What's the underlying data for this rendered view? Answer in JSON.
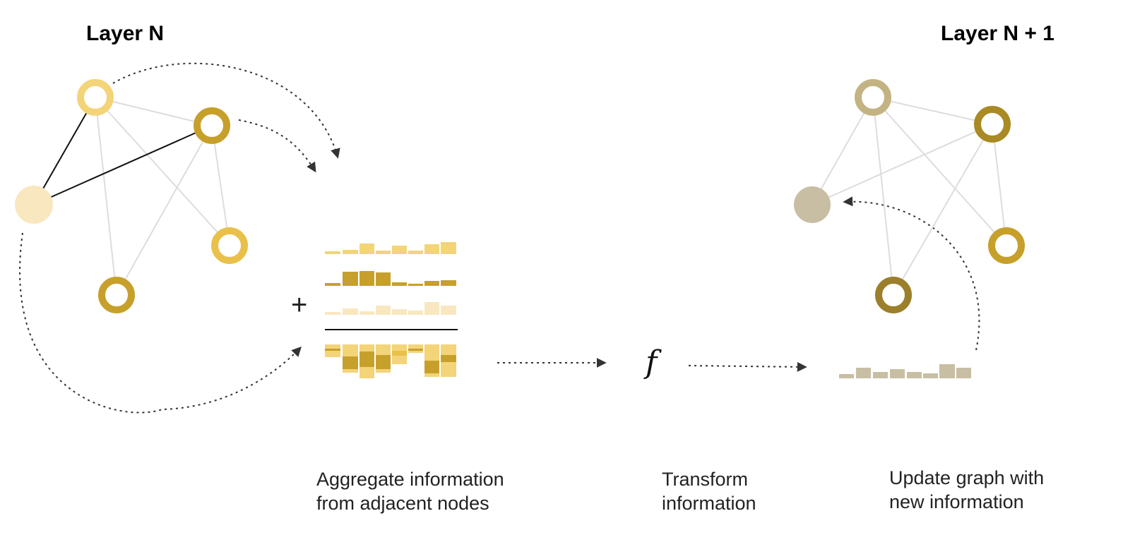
{
  "titles": {
    "left": "Layer N",
    "right": "Layer N + 1"
  },
  "captions": {
    "aggregate": [
      "Aggregate information",
      "from adjacent nodes"
    ],
    "transform": [
      "Transform",
      "information"
    ],
    "update": [
      "Update graph with",
      "new information"
    ]
  },
  "symbols": {
    "plus": "+",
    "function": "f"
  },
  "colors": {
    "edge_light": "#dddddd",
    "edge_dark": "#111111",
    "arrow": "#333333",
    "result_gray": "#c8bea3",
    "node_pale": "#f9e7bf",
    "node_light_gold": "#f3d479",
    "node_gold": "#e9c04a",
    "node_dark_gold": "#c7a02c",
    "node_olive": "#a98a24",
    "node_gray_gold": "#c4b382",
    "node_olive_dark": "#9c7f2a"
  }
}
